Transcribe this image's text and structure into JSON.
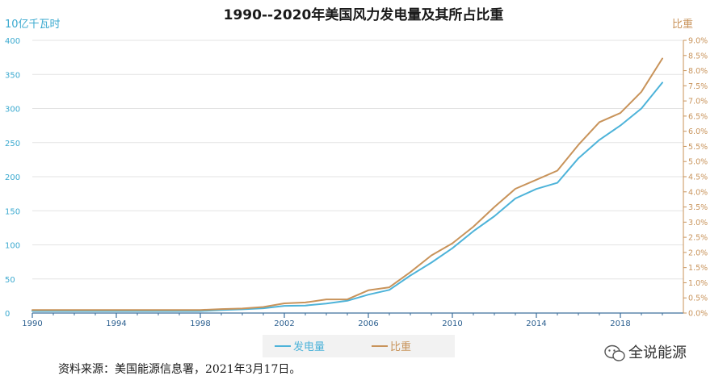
{
  "title": "1990--2020年美国风力发电量及其所占比重",
  "source": "资料来源：美国能源信息署，2021年3月17日。",
  "watermark": "全说能源",
  "colors": {
    "generation": "#4db3d9",
    "share": "#c8935a",
    "grid": "#e3e3e3",
    "axis": "#3d6f9c",
    "xtick": "#2b5f8f"
  },
  "chart_data": {
    "type": "line",
    "x": [
      1990,
      1991,
      1992,
      1993,
      1994,
      1995,
      1996,
      1997,
      1998,
      1999,
      2000,
      2001,
      2002,
      2003,
      2004,
      2005,
      2006,
      2007,
      2008,
      2009,
      2010,
      2011,
      2012,
      2013,
      2014,
      2015,
      2016,
      2017,
      2018,
      2019,
      2020
    ],
    "series": [
      {
        "name": "发电量",
        "axis": "left",
        "values": [
          3,
          3,
          3,
          3,
          3,
          3,
          3,
          3,
          3,
          4.5,
          5.5,
          7,
          10.5,
          11,
          14,
          18,
          27,
          34,
          55,
          74,
          95,
          120,
          142,
          168,
          182,
          191,
          227,
          254,
          275,
          300,
          338
        ]
      },
      {
        "name": "比重",
        "axis": "right",
        "values": [
          0.1,
          0.1,
          0.1,
          0.1,
          0.1,
          0.1,
          0.1,
          0.1,
          0.1,
          0.13,
          0.15,
          0.2,
          0.32,
          0.35,
          0.45,
          0.45,
          0.75,
          0.85,
          1.35,
          1.9,
          2.3,
          2.85,
          3.5,
          4.1,
          4.4,
          4.7,
          5.55,
          6.3,
          6.6,
          7.3,
          8.4
        ]
      }
    ],
    "ylabel_left": "10亿千瓦时",
    "ylabel_right": "比重",
    "ylim_left": [
      0,
      400
    ],
    "ylim_right": [
      0,
      9
    ],
    "yticks_left": [
      "0",
      "50",
      "100",
      "150",
      "200",
      "250",
      "300",
      "350",
      "400"
    ],
    "yticks_right": [
      "0.0%",
      "0.5%",
      "1.0%",
      "1.5%",
      "2.0%",
      "2.5%",
      "3.0%",
      "3.5%",
      "4.0%",
      "4.5%",
      "5.0%",
      "5.5%",
      "6.0%",
      "6.5%",
      "7.0%",
      "7.5%",
      "8.0%",
      "8.5%",
      "9.0%"
    ],
    "xticks": [
      "1990",
      "1994",
      "1998",
      "2002",
      "2006",
      "2010",
      "2014",
      "2018"
    ],
    "xlim": [
      1990,
      2021
    ],
    "grid": true,
    "legend": "bottom"
  }
}
